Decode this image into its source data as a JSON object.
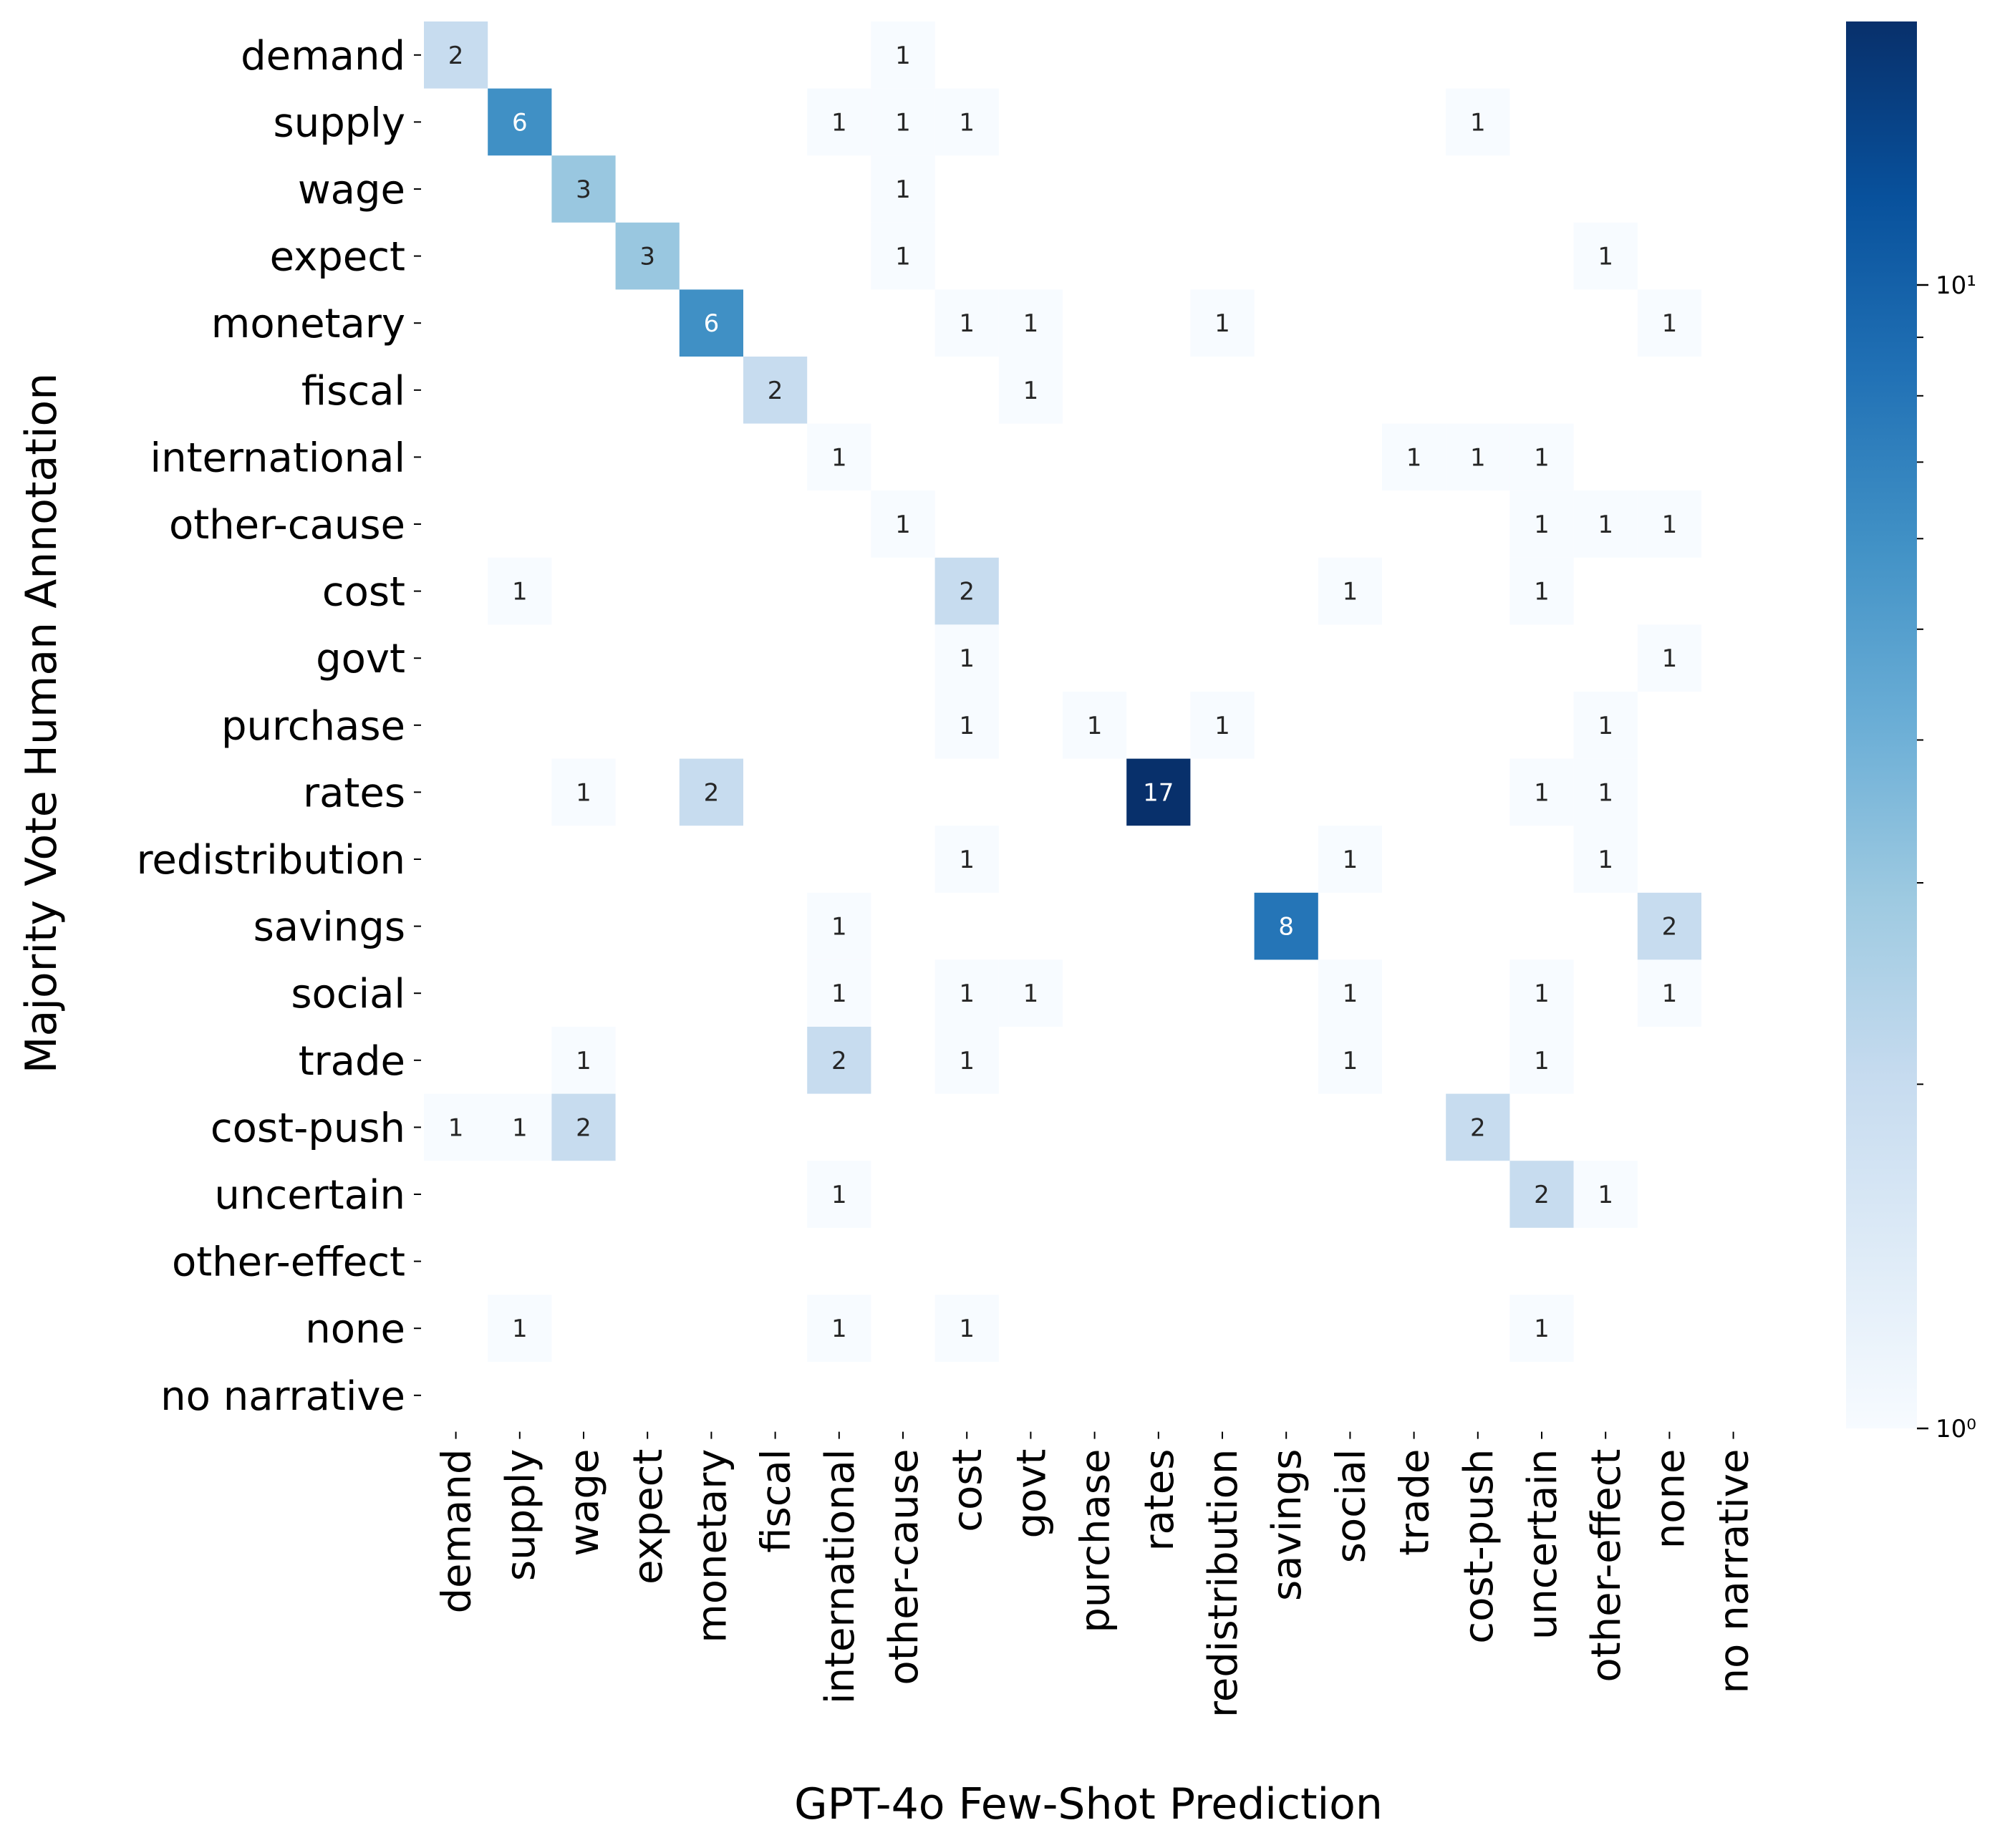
{
  "chart_data": {
    "type": "heatmap",
    "xlabel": "GPT-4o Few-Shot Prediction",
    "ylabel": "Majority Vote Human Annotation",
    "row_labels": [
      "demand",
      "supply",
      "wage",
      "expect",
      "monetary",
      "fiscal",
      "international",
      "other-cause",
      "cost",
      "govt",
      "purchase",
      "rates",
      "redistribution",
      "savings",
      "social",
      "trade",
      "cost-push",
      "uncertain",
      "other-effect",
      "none",
      "no narrative"
    ],
    "col_labels": [
      "demand",
      "supply",
      "wage",
      "expect",
      "monetary",
      "fiscal",
      "international",
      "other-cause",
      "cost",
      "govt",
      "purchase",
      "rates",
      "redistribution",
      "savings",
      "social",
      "trade",
      "cost-push",
      "uncertain",
      "other-effect",
      "none",
      "no narrative"
    ],
    "values": [
      [
        2,
        0,
        0,
        0,
        0,
        0,
        0,
        1,
        0,
        0,
        0,
        0,
        0,
        0,
        0,
        0,
        0,
        0,
        0,
        0,
        0
      ],
      [
        0,
        6,
        0,
        0,
        0,
        0,
        1,
        1,
        1,
        0,
        0,
        0,
        0,
        0,
        0,
        0,
        1,
        0,
        0,
        0,
        0
      ],
      [
        0,
        0,
        3,
        0,
        0,
        0,
        0,
        1,
        0,
        0,
        0,
        0,
        0,
        0,
        0,
        0,
        0,
        0,
        0,
        0,
        0
      ],
      [
        0,
        0,
        0,
        3,
        0,
        0,
        0,
        1,
        0,
        0,
        0,
        0,
        0,
        0,
        0,
        0,
        0,
        0,
        1,
        0,
        0
      ],
      [
        0,
        0,
        0,
        0,
        6,
        0,
        0,
        0,
        1,
        1,
        0,
        0,
        1,
        0,
        0,
        0,
        0,
        0,
        0,
        1,
        0
      ],
      [
        0,
        0,
        0,
        0,
        0,
        2,
        0,
        0,
        0,
        1,
        0,
        0,
        0,
        0,
        0,
        0,
        0,
        0,
        0,
        0,
        0
      ],
      [
        0,
        0,
        0,
        0,
        0,
        0,
        1,
        0,
        0,
        0,
        0,
        0,
        0,
        0,
        0,
        1,
        1,
        1,
        0,
        0,
        0
      ],
      [
        0,
        0,
        0,
        0,
        0,
        0,
        0,
        1,
        0,
        0,
        0,
        0,
        0,
        0,
        0,
        0,
        0,
        1,
        1,
        1,
        0
      ],
      [
        0,
        1,
        0,
        0,
        0,
        0,
        0,
        0,
        2,
        0,
        0,
        0,
        0,
        0,
        1,
        0,
        0,
        1,
        0,
        0,
        0
      ],
      [
        0,
        0,
        0,
        0,
        0,
        0,
        0,
        0,
        1,
        0,
        0,
        0,
        0,
        0,
        0,
        0,
        0,
        0,
        0,
        1,
        0
      ],
      [
        0,
        0,
        0,
        0,
        0,
        0,
        0,
        0,
        1,
        0,
        1,
        0,
        1,
        0,
        0,
        0,
        0,
        0,
        1,
        0,
        0
      ],
      [
        0,
        0,
        1,
        0,
        2,
        0,
        0,
        0,
        0,
        0,
        0,
        17,
        0,
        0,
        0,
        0,
        0,
        1,
        1,
        0,
        0
      ],
      [
        0,
        0,
        0,
        0,
        0,
        0,
        0,
        0,
        1,
        0,
        0,
        0,
        0,
        0,
        1,
        0,
        0,
        0,
        1,
        0,
        0
      ],
      [
        0,
        0,
        0,
        0,
        0,
        0,
        1,
        0,
        0,
        0,
        0,
        0,
        0,
        8,
        0,
        0,
        0,
        0,
        0,
        2,
        0
      ],
      [
        0,
        0,
        0,
        0,
        0,
        0,
        1,
        0,
        1,
        1,
        0,
        0,
        0,
        0,
        1,
        0,
        0,
        1,
        0,
        1,
        0
      ],
      [
        0,
        0,
        1,
        0,
        0,
        0,
        2,
        0,
        1,
        0,
        0,
        0,
        0,
        0,
        1,
        0,
        0,
        1,
        0,
        0,
        0
      ],
      [
        1,
        1,
        2,
        0,
        0,
        0,
        0,
        0,
        0,
        0,
        0,
        0,
        0,
        0,
        0,
        0,
        2,
        0,
        0,
        0,
        0
      ],
      [
        0,
        0,
        0,
        0,
        0,
        0,
        1,
        0,
        0,
        0,
        0,
        0,
        0,
        0,
        0,
        0,
        0,
        2,
        1,
        0,
        0
      ],
      [
        0,
        0,
        0,
        0,
        0,
        0,
        0,
        0,
        0,
        0,
        0,
        0,
        0,
        0,
        0,
        0,
        0,
        0,
        0,
        0,
        0
      ],
      [
        0,
        1,
        0,
        0,
        0,
        0,
        1,
        0,
        1,
        0,
        0,
        0,
        0,
        0,
        0,
        0,
        0,
        1,
        0,
        0,
        0
      ],
      [
        0,
        0,
        0,
        0,
        0,
        0,
        0,
        0,
        0,
        0,
        0,
        0,
        0,
        0,
        0,
        0,
        0,
        0,
        0,
        0,
        0
      ]
    ],
    "color_scale": "log",
    "colormap": "Blues",
    "vmin": 1,
    "vmax": 17,
    "colorbar_tick_labels": [
      "10⁰",
      "10¹"
    ],
    "zero_cells": "blank",
    "annotations": true,
    "grid": false
  },
  "colors": {
    "blues": [
      "#f7fbff",
      "#deebf7",
      "#c6dbef",
      "#9ecae1",
      "#6baed6",
      "#4292c6",
      "#2171b5",
      "#08519c",
      "#08306b"
    ],
    "text_dark": "#262626",
    "text_light": "#ffffff"
  }
}
